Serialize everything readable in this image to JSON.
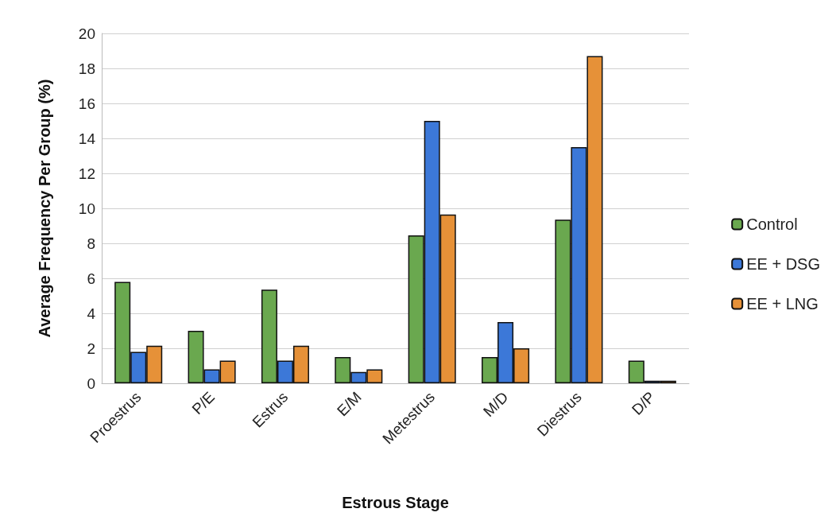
{
  "chart_data": {
    "type": "bar",
    "xlabel": "Estrous Stage",
    "ylabel": "Average Frequency Per Group (%)",
    "categories": [
      "Proestrus",
      "P/E",
      "Estrus",
      "E/M",
      "Metestrus",
      "M/D",
      "Diestrus",
      "D/P"
    ],
    "series": [
      {
        "name": "Control",
        "color": "#6aa84f",
        "values": [
          5.8,
          3.0,
          5.35,
          1.5,
          8.45,
          1.5,
          9.35,
          1.3
        ]
      },
      {
        "name": "EE + DSG",
        "color": "#3c78d8",
        "values": [
          1.8,
          0.8,
          1.3,
          0.65,
          15.0,
          3.5,
          13.5,
          0.15
        ]
      },
      {
        "name": "EE + LNG",
        "color": "#e69138",
        "values": [
          2.15,
          1.3,
          2.15,
          0.8,
          9.65,
          2.0,
          18.7,
          0.15
        ]
      }
    ],
    "ylim": [
      0,
      20
    ],
    "yticks": [
      0,
      2,
      4,
      6,
      8,
      10,
      12,
      14,
      16,
      18,
      20
    ],
    "grid": "y",
    "legend": "right"
  }
}
